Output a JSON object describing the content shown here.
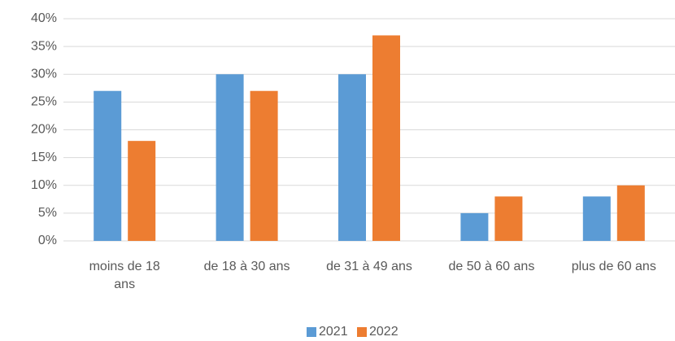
{
  "chart_data": {
    "type": "bar",
    "categories": [
      "moins de 18 ans",
      "de 18 à 30 ans",
      "de 31 à 49 ans",
      "de 50 à 60 ans",
      "plus de 60 ans"
    ],
    "series": [
      {
        "name": "2021",
        "color": "#5b9bd5",
        "values": [
          27,
          30,
          30,
          5,
          8
        ]
      },
      {
        "name": "2022",
        "color": "#ed7d31",
        "values": [
          18,
          27,
          37,
          8,
          10
        ]
      }
    ],
    "ylim": [
      0,
      40
    ],
    "yticks": [
      {
        "value": 0,
        "label": "0%"
      },
      {
        "value": 5,
        "label": "5%"
      },
      {
        "value": 10,
        "label": "10%"
      },
      {
        "value": 15,
        "label": "15%"
      },
      {
        "value": 20,
        "label": "20%"
      },
      {
        "value": 25,
        "label": "25%"
      },
      {
        "value": 30,
        "label": "30%"
      },
      {
        "value": 35,
        "label": "35%"
      },
      {
        "value": 40,
        "label": "40%"
      }
    ],
    "grid": true,
    "legend": "bottom"
  }
}
